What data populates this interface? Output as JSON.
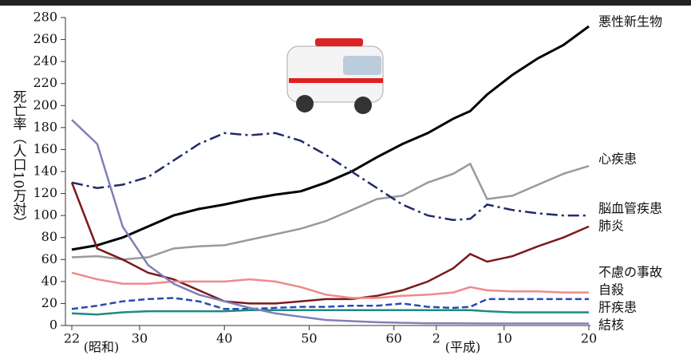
{
  "chart_data": {
    "type": "line",
    "y_label": "死亡率（人口10万対）",
    "annotations": [
      "(昭和)",
      "(平成)"
    ],
    "x": [
      22,
      25,
      28,
      31,
      34,
      37,
      40,
      43,
      46,
      49,
      52,
      55,
      58,
      61,
      64,
      67,
      69,
      71,
      74,
      77,
      80,
      83
    ],
    "xlim": [
      22,
      83
    ],
    "xticks": [
      22,
      30,
      40,
      50,
      60,
      {
        "value": 65,
        "label": "2"
      },
      {
        "value": 73,
        "label": "10"
      },
      {
        "value": 83,
        "label": "20"
      }
    ],
    "ylim": [
      0,
      280
    ],
    "yticks": [
      0,
      20,
      40,
      60,
      80,
      100,
      120,
      140,
      160,
      180,
      200,
      220,
      240,
      260,
      280
    ],
    "series": [
      {
        "name": "悪性新生物",
        "color": "#000000",
        "style": "solid",
        "values": [
          69,
          73,
          80,
          90,
          100,
          106,
          110,
          115,
          119,
          122,
          130,
          140,
          153,
          165,
          175,
          188,
          195,
          210,
          228,
          243,
          255,
          272
        ]
      },
      {
        "name": "心疾患",
        "color": "#9a9a9a",
        "style": "solid",
        "values": [
          62,
          63,
          60,
          62,
          70,
          72,
          73,
          78,
          83,
          88,
          95,
          105,
          115,
          118,
          130,
          138,
          147,
          115,
          118,
          128,
          138,
          145
        ]
      },
      {
        "name": "脳血管疾患",
        "color": "#1f2a6b",
        "style": "dashdot",
        "values": [
          130,
          125,
          128,
          135,
          150,
          165,
          175,
          173,
          175,
          168,
          155,
          140,
          125,
          110,
          100,
          96,
          97,
          110,
          105,
          102,
          100,
          100
        ]
      },
      {
        "name": "肺炎",
        "color": "#7a1a1a",
        "style": "solid",
        "values": [
          130,
          70,
          60,
          48,
          42,
          32,
          22,
          20,
          20,
          22,
          24,
          24,
          27,
          32,
          40,
          52,
          65,
          58,
          63,
          72,
          80,
          90
        ]
      },
      {
        "name": "不慮の事故",
        "color": "#f08a8a",
        "style": "solid",
        "values": [
          48,
          42,
          38,
          38,
          40,
          40,
          40,
          42,
          40,
          35,
          28,
          25,
          25,
          27,
          28,
          30,
          35,
          32,
          31,
          31,
          30,
          30
        ]
      },
      {
        "name": "自殺",
        "color": "#2a4bb0",
        "style": "dashed",
        "values": [
          15,
          18,
          22,
          24,
          25,
          22,
          15,
          15,
          16,
          17,
          17,
          18,
          18,
          20,
          17,
          16,
          17,
          24,
          24,
          24,
          24,
          24
        ]
      },
      {
        "name": "肝疾患",
        "color": "#1f8a80",
        "style": "solid",
        "values": [
          11,
          10,
          12,
          13,
          13,
          13,
          13,
          14,
          14,
          14,
          14,
          14,
          14,
          14,
          14,
          14,
          14,
          13,
          12,
          12,
          12,
          12
        ]
      },
      {
        "name": "結核",
        "color": "#8080b8",
        "style": "solid",
        "values": [
          187,
          165,
          90,
          55,
          38,
          28,
          22,
          16,
          11,
          8,
          5,
          4,
          3,
          2.5,
          2,
          2,
          1.9,
          1.8,
          1.8,
          1.8,
          1.8,
          1.8
        ]
      }
    ]
  }
}
